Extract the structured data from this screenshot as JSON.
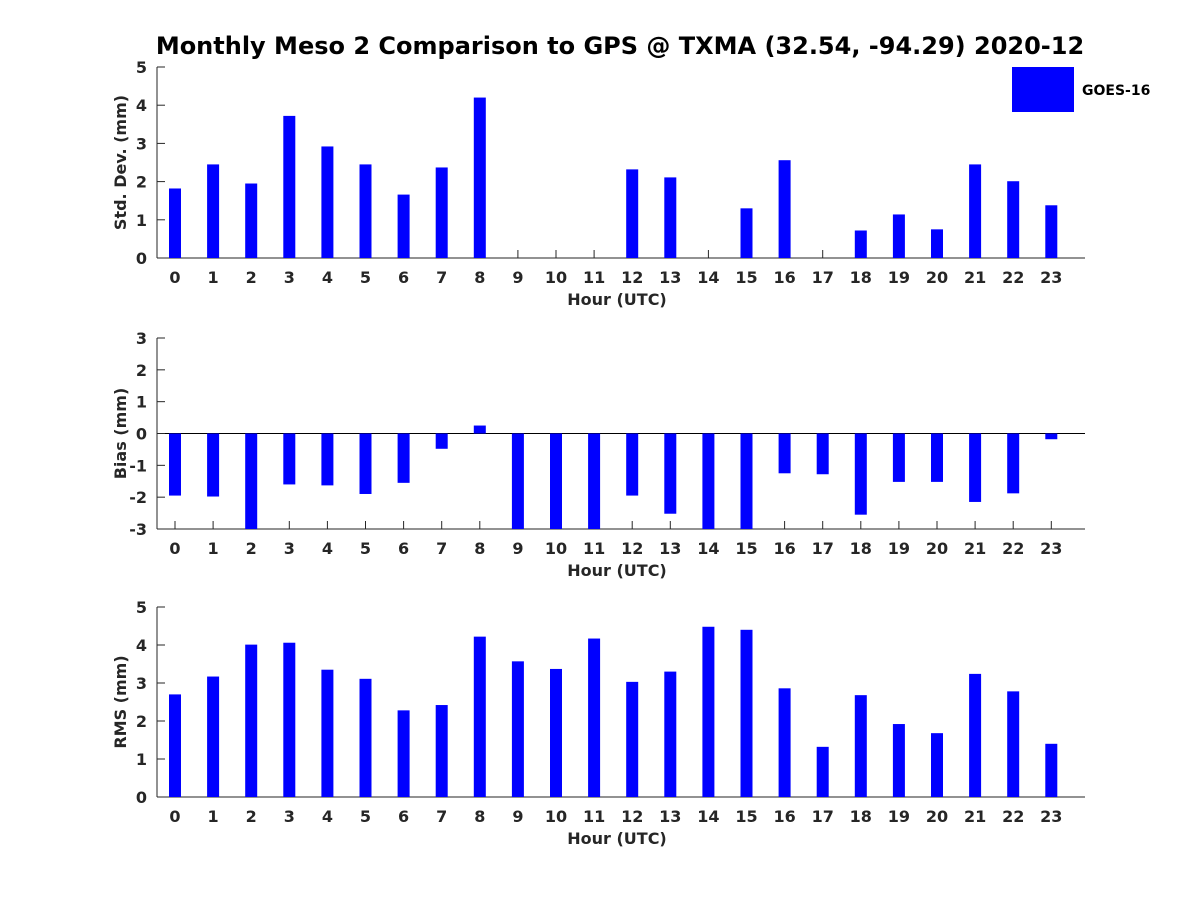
{
  "title": "Monthly Meso 2 Comparison to GPS @ TXMA (32.54, -94.29) 2020-12",
  "legend": {
    "label": "GOES-16",
    "color": "#0000ff",
    "placement": "top-right"
  },
  "chart_data": [
    {
      "type": "bar",
      "xlabel": "Hour (UTC)",
      "ylabel": "Std. Dev. (mm)",
      "ylim": [
        0,
        5
      ],
      "yticks": [
        0,
        1,
        2,
        3,
        4,
        5
      ],
      "categories": [
        "0",
        "1",
        "2",
        "3",
        "4",
        "5",
        "6",
        "7",
        "8",
        "9",
        "10",
        "11",
        "12",
        "13",
        "14",
        "15",
        "16",
        "17",
        "18",
        "19",
        "20",
        "21",
        "22",
        "23"
      ],
      "series": [
        {
          "name": "GOES-16",
          "values": [
            1.82,
            2.45,
            1.95,
            3.72,
            2.92,
            2.45,
            1.66,
            2.37,
            4.2,
            0,
            0,
            0,
            2.32,
            2.11,
            0,
            1.3,
            2.56,
            0,
            0.72,
            1.14,
            0.75,
            2.45,
            2.01,
            1.38
          ]
        }
      ]
    },
    {
      "type": "bar",
      "xlabel": "Hour (UTC)",
      "ylabel": "Bias (mm)",
      "ylim": [
        -3,
        3
      ],
      "yticks": [
        -3,
        -2,
        -1,
        0,
        1,
        2,
        3
      ],
      "categories": [
        "0",
        "1",
        "2",
        "3",
        "4",
        "5",
        "6",
        "7",
        "8",
        "9",
        "10",
        "11",
        "12",
        "13",
        "14",
        "15",
        "16",
        "17",
        "18",
        "19",
        "20",
        "21",
        "22",
        "23"
      ],
      "series": [
        {
          "name": "GOES-16",
          "values": [
            -1.95,
            -1.98,
            -3.0,
            -1.6,
            -1.63,
            -1.9,
            -1.55,
            -0.48,
            0.25,
            -3.0,
            -3.0,
            -3.0,
            -1.95,
            -2.52,
            -3.0,
            -3.0,
            -1.25,
            -1.28,
            -2.55,
            -1.52,
            -1.52,
            -2.15,
            -1.88,
            -0.18
          ]
        }
      ]
    },
    {
      "type": "bar",
      "xlabel": "Hour (UTC)",
      "ylabel": "RMS (mm)",
      "ylim": [
        0,
        5
      ],
      "yticks": [
        0,
        1,
        2,
        3,
        4,
        5
      ],
      "categories": [
        "0",
        "1",
        "2",
        "3",
        "4",
        "5",
        "6",
        "7",
        "8",
        "9",
        "10",
        "11",
        "12",
        "13",
        "14",
        "15",
        "16",
        "17",
        "18",
        "19",
        "20",
        "21",
        "22",
        "23"
      ],
      "series": [
        {
          "name": "GOES-16",
          "values": [
            2.7,
            3.17,
            4.01,
            4.06,
            3.35,
            3.11,
            2.28,
            2.42,
            4.22,
            3.57,
            3.37,
            4.17,
            3.03,
            3.3,
            4.48,
            4.4,
            2.86,
            1.32,
            2.68,
            1.92,
            1.68,
            3.24,
            2.78,
            1.4
          ]
        }
      ]
    }
  ]
}
